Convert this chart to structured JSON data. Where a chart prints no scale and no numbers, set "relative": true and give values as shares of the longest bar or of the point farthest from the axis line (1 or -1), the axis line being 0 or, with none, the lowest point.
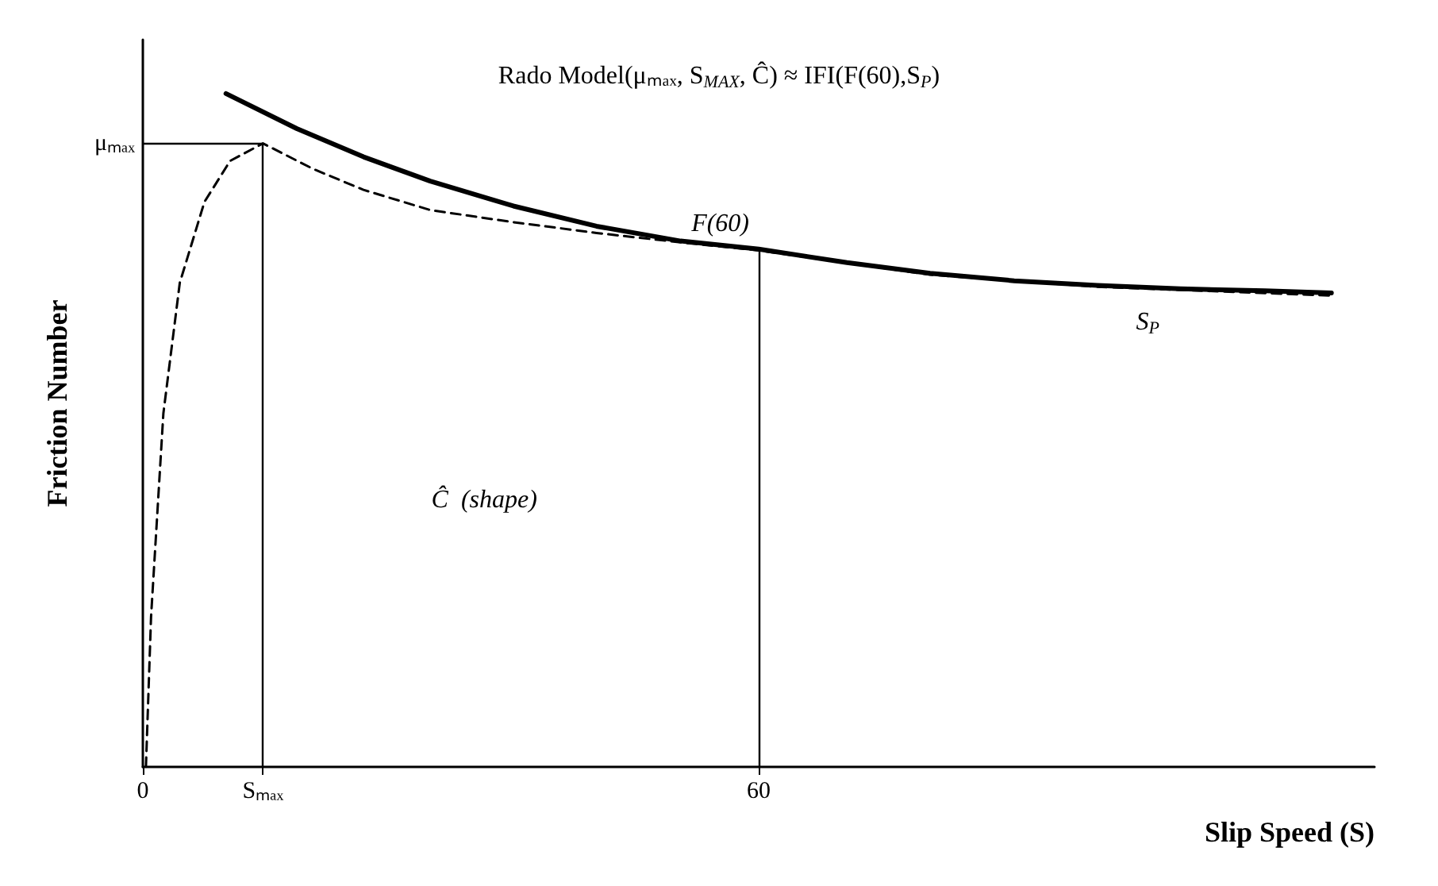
{
  "chart_data": {
    "type": "line",
    "relative": true,
    "xlabel": "Slip Speed (S)",
    "ylabel": "Friction Number",
    "xlim": [
      0,
      120
    ],
    "xticks": [
      0,
      {
        "value": 11.7,
        "label": "Sₘₐₓ"
      },
      60
    ],
    "marker": "none",
    "series": [
      {
        "color": "#000000",
        "line_style": "solid",
        "x": [
          8.1,
          15,
          21.5,
          28,
          36.1,
          44.2,
          52.4,
          60,
          68.6,
          76.7,
          84.9,
          93,
          101.1,
          109.3,
          115.8
        ],
        "values": [
          1.0,
          0.948,
          0.906,
          0.87,
          0.833,
          0.803,
          0.781,
          0.769,
          0.749,
          0.733,
          0.722,
          0.715,
          0.71,
          0.707,
          0.704
        ]
      },
      {
        "color": "#000000",
        "line_style": "dashed",
        "x": [
          0.3,
          0.8,
          2,
          3.6,
          6,
          8.5,
          11.7,
          16.6,
          21.5,
          28,
          36.1,
          44.2,
          52.4,
          60,
          76.7,
          93,
          115.8
        ],
        "values": [
          0,
          0.223,
          0.525,
          0.719,
          0.839,
          0.9,
          0.926,
          0.888,
          0.857,
          0.827,
          0.809,
          0.793,
          0.779,
          0.767,
          0.731,
          0.713,
          0.7
        ]
      }
    ],
    "ref_lines": [
      {
        "axis": "y",
        "value": 0.926,
        "label": "μₘₐₓ"
      },
      {
        "axis": "x",
        "value": 11.7
      },
      {
        "axis": "x",
        "value": 60
      }
    ],
    "annotations": [
      "Rado Model(μₘₐₓ, S$_{MAX}$, Ĉ) ≈ IFI(F(60),S$_{P}$)",
      {
        "text": "F(60)",
        "x": 60,
        "y": 0.769
      },
      "S$_{P}$",
      "Ĉ  (shape)"
    ]
  }
}
